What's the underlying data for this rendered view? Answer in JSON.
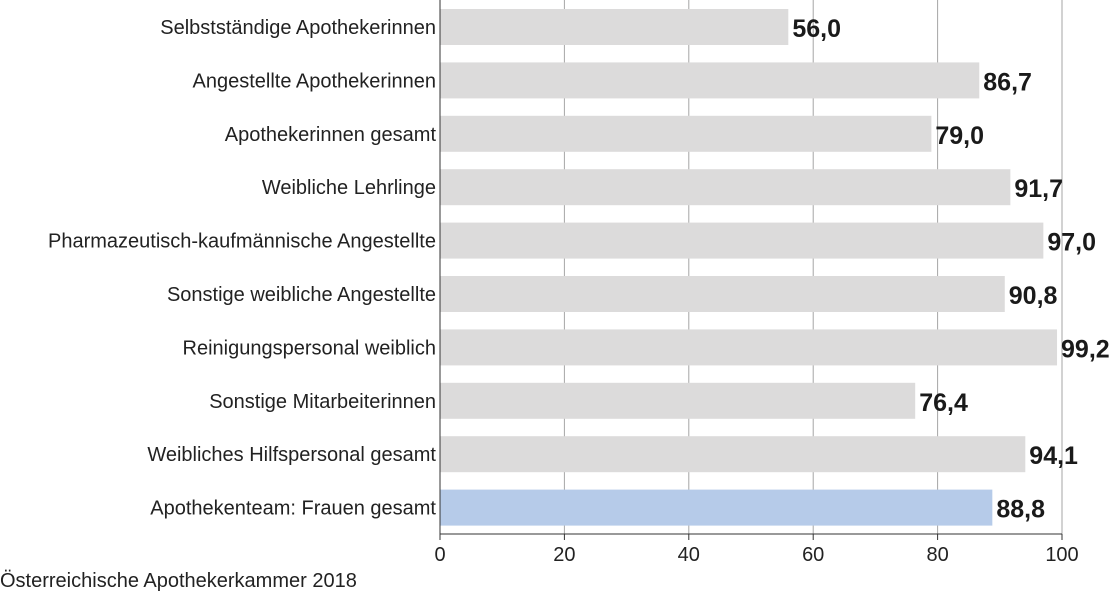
{
  "chart_data": {
    "type": "bar",
    "orientation": "horizontal",
    "categories": [
      "Selbstständige Apothekerinnen",
      "Angestellte Apothekerinnen",
      "Apothekerinnen gesamt",
      "Weibliche Lehrlinge",
      "Pharmazeutisch-kaufmännische Angestellte",
      "Sonstige weibliche Angestellte",
      "Reinigungspersonal weiblich",
      "Sonstige Mitarbeiterinnen",
      "Weibliches Hilfspersonal gesamt",
      "Apothekenteam: Frauen gesamt"
    ],
    "values": [
      56.0,
      86.7,
      79.0,
      91.7,
      97.0,
      90.8,
      99.2,
      76.4,
      94.1,
      88.8
    ],
    "value_labels": [
      "56,0",
      "86,7",
      "79,0",
      "91,7",
      "97,0",
      "90,8",
      "99,2",
      "76,4",
      "94,1",
      "88,8"
    ],
    "xlim": [
      0,
      100
    ],
    "xticks": [
      0,
      20,
      40,
      60,
      80,
      100
    ],
    "grid": true,
    "colors": {
      "bar": "#dcdbdb",
      "highlight_bar": "#b6cbe9",
      "grid": "#a6a6a6",
      "axis": "#333333"
    },
    "highlight_index": 9
  },
  "source": "Österreichische Apothekerkammer 2018"
}
